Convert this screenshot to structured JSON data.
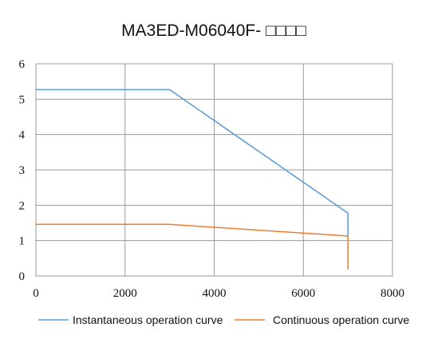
{
  "chart_data": {
    "type": "line",
    "title": "MA3ED-M06040F- □□□□",
    "xlabel": "",
    "ylabel": "",
    "xlim": [
      0,
      8000
    ],
    "ylim": [
      0,
      6
    ],
    "x_ticks": [
      0,
      2000,
      4000,
      6000,
      8000
    ],
    "y_ticks": [
      0,
      1,
      2,
      3,
      4,
      5,
      6
    ],
    "grid": true,
    "legend_position": "bottom",
    "series": [
      {
        "name": "Instantaneous operation curve",
        "color": "#5b9bd5",
        "points": [
          [
            0,
            5.27
          ],
          [
            3000,
            5.27
          ],
          [
            7000,
            1.78
          ],
          [
            7000,
            1.13
          ]
        ]
      },
      {
        "name": "Continuous operation curve",
        "color": "#ed7d31",
        "points": [
          [
            0,
            1.46
          ],
          [
            3000,
            1.46
          ],
          [
            7000,
            1.13
          ],
          [
            7000,
            0.18
          ]
        ]
      }
    ]
  }
}
